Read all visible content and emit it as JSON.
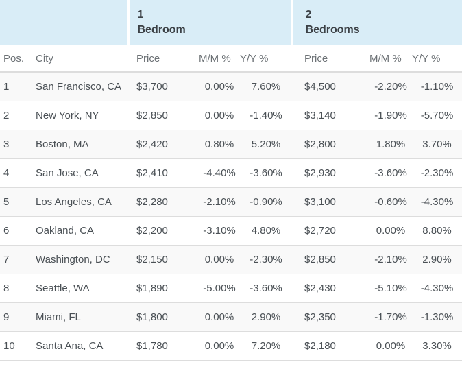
{
  "chart_data": {
    "type": "table",
    "group_headers": [
      {
        "line1": "1",
        "line2": "Bedroom"
      },
      {
        "line1": "2",
        "line2": "Bedrooms"
      }
    ],
    "columns": [
      "Pos.",
      "City",
      "Price",
      "M/M %",
      "Y/Y %",
      "Price",
      "M/M %",
      "Y/Y %"
    ],
    "rows": [
      [
        "1",
        "San Francisco, CA",
        "$3,700",
        "0.00%",
        "7.60%",
        "$4,500",
        "-2.20%",
        "-1.10%"
      ],
      [
        "2",
        "New York, NY",
        "$2,850",
        "0.00%",
        "-1.40%",
        "$3,140",
        "-1.90%",
        "-5.70%"
      ],
      [
        "3",
        "Boston, MA",
        "$2,420",
        "0.80%",
        "5.20%",
        "$2,800",
        "1.80%",
        "3.70%"
      ],
      [
        "4",
        "San Jose, CA",
        "$2,410",
        "-4.40%",
        "-3.60%",
        "$2,930",
        "-3.60%",
        "-2.30%"
      ],
      [
        "5",
        "Los Angeles, CA",
        "$2,280",
        "-2.10%",
        "-0.90%",
        "$3,100",
        "-0.60%",
        "-4.30%"
      ],
      [
        "6",
        "Oakland, CA",
        "$2,200",
        "-3.10%",
        "4.80%",
        "$2,720",
        "0.00%",
        "8.80%"
      ],
      [
        "7",
        "Washington, DC",
        "$2,150",
        "0.00%",
        "-2.30%",
        "$2,850",
        "-2.10%",
        "2.90%"
      ],
      [
        "8",
        "Seattle, WA",
        "$1,890",
        "-5.00%",
        "-3.60%",
        "$2,430",
        "-5.10%",
        "-4.30%"
      ],
      [
        "9",
        "Miami, FL",
        "$1,800",
        "0.00%",
        "2.90%",
        "$2,350",
        "-1.70%",
        "-1.30%"
      ],
      [
        "10",
        "Santa Ana, CA",
        "$1,780",
        "0.00%",
        "7.20%",
        "$2,180",
        "0.00%",
        "3.30%"
      ]
    ]
  },
  "colors": {
    "group_header_bg": "#d9edf7",
    "group_divider": "#ffffff",
    "border": "#dddddd",
    "stripe_bg": "#f9f9f9",
    "group_header_text": "#3c4146",
    "column_header_text": "#6d7276",
    "body_text": "#4a5055"
  }
}
